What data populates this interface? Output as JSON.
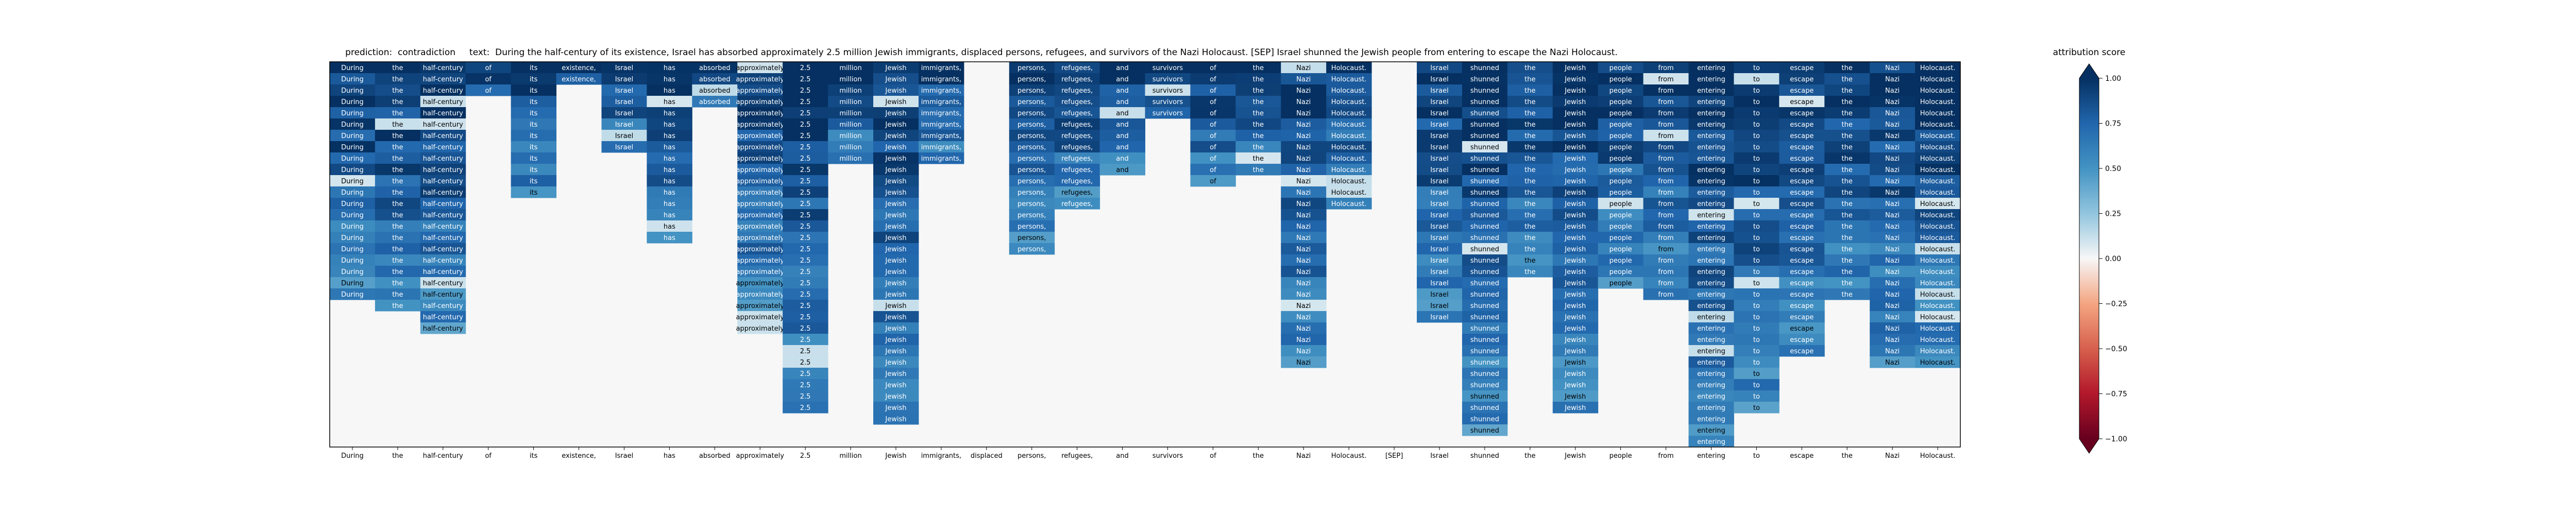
{
  "title": "prediction:  contradiction     text:  During the half-century of its existence, Israel has absorbed approximately 2.5 million Jewish immigrants, displaced persons, refugees, and survivors of the Nazi Holocaust. [SEP] Israel shunned the Jewish people from entering to escape the Nazi Holocaust.",
  "chart_data": {
    "type": "heatmap",
    "title": "prediction:  contradiction     text:  During the half-century of its existence, Israel has absorbed approximately 2.5 million Jewish immigrants, displaced persons, refugees, and survivors of the Nazi Holocaust. [SEP] Israel shunned the Jewish people from entering to escape the Nazi Holocaust.",
    "tokens": [
      "During",
      "the",
      "half-century",
      "of",
      "its",
      "existence,",
      "Israel",
      "has",
      "absorbed",
      "approximately",
      "2.5",
      "million",
      "Jewish",
      "immigrants,",
      "displaced",
      "persons,",
      "refugees,",
      "and",
      "survivors",
      "of",
      "the",
      "Nazi",
      "Holocaust.",
      "[SEP]",
      "Israel",
      "shunned",
      "the",
      "Jewish",
      "people",
      "from",
      "entering",
      "to",
      "escape",
      "the",
      "Nazi",
      "Holocaust."
    ],
    "column_lengths": [
      21,
      22,
      24,
      3,
      12,
      2,
      8,
      16,
      4,
      24,
      31,
      9,
      32,
      9,
      0,
      17,
      13,
      10,
      5,
      11,
      10,
      27,
      13,
      0,
      23,
      33,
      19,
      31,
      20,
      21,
      34,
      31,
      26,
      21,
      27,
      27
    ],
    "rows": 34,
    "colorbar": {
      "label": "attribution score",
      "colormap": "RdBu",
      "range": [
        -1.0,
        1.0
      ],
      "ticks": [
        -1.0,
        -0.75,
        -0.5,
        -0.25,
        0.0,
        0.25,
        0.5,
        0.75,
        1.0
      ],
      "tick_labels": [
        "−1.00",
        "−0.75",
        "−0.50",
        "−0.25",
        "0.00",
        "0.25",
        "0.50",
        "0.75",
        "1.00"
      ]
    }
  }
}
